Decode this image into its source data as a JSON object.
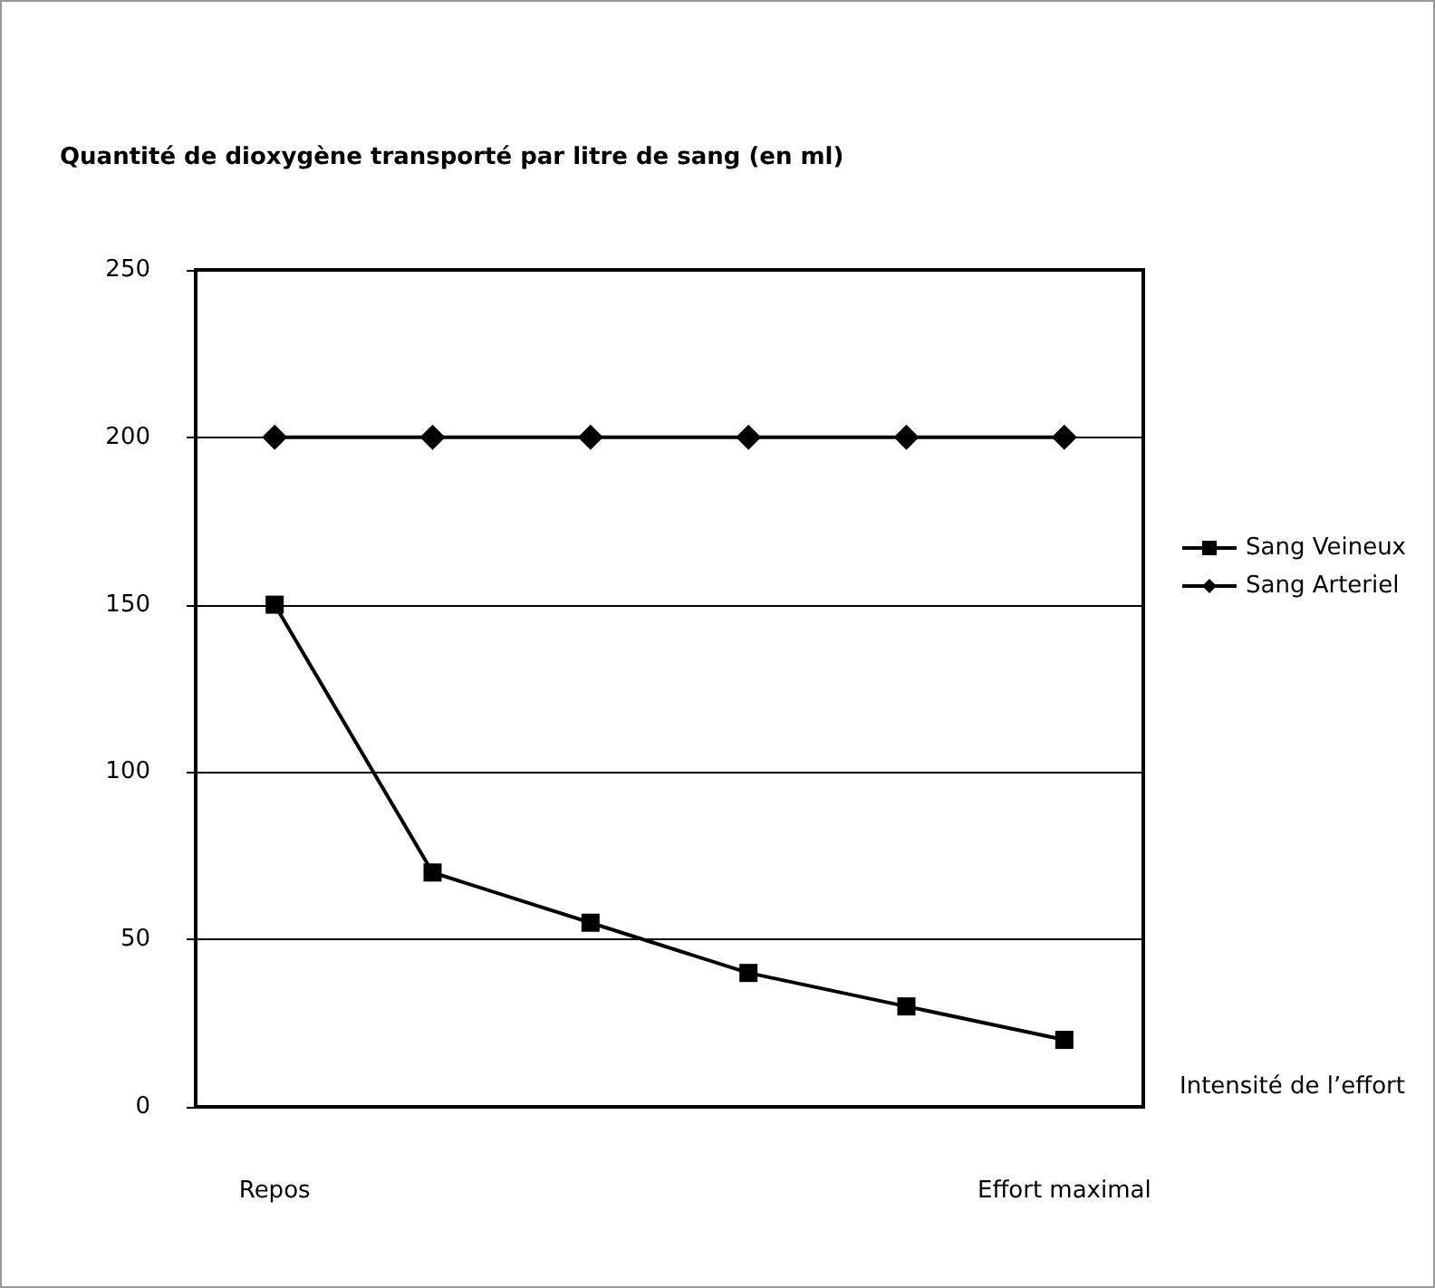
{
  "chart_data": {
    "type": "line",
    "ylabel": "Quantité de dioxygène transporté par litre de sang (en ml)",
    "xlabel": "Intensité de l’effort",
    "categories": [
      "Repos",
      null,
      null,
      null,
      null,
      "Effort maximal"
    ],
    "series": [
      {
        "name": "Sang Veineux",
        "color": "#000000",
        "marker": "square",
        "values": [
          150,
          70,
          55,
          40,
          30,
          20
        ]
      },
      {
        "name": "Sang Arteriel",
        "color": "#000000",
        "marker": "diamond",
        "values": [
          200,
          200,
          200,
          200,
          200,
          200
        ]
      }
    ],
    "ylim": [
      0,
      250
    ],
    "yticks": [
      0,
      50,
      100,
      150,
      200,
      250
    ],
    "grid": "y",
    "legend": "right",
    "line_style": "solid"
  }
}
